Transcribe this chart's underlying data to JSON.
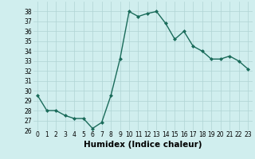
{
  "x": [
    0,
    1,
    2,
    3,
    4,
    5,
    6,
    7,
    8,
    9,
    10,
    11,
    12,
    13,
    14,
    15,
    16,
    17,
    18,
    19,
    20,
    21,
    22,
    23
  ],
  "y": [
    29.5,
    28.0,
    28.0,
    27.5,
    27.2,
    27.2,
    26.2,
    26.8,
    29.5,
    33.2,
    38.0,
    37.5,
    37.8,
    38.0,
    36.8,
    35.2,
    36.0,
    34.5,
    34.0,
    33.2,
    33.2,
    33.5,
    33.0,
    32.2
  ],
  "line_color": "#1a6b5a",
  "marker": "D",
  "marker_size": 2.0,
  "bg_color": "#d0eeee",
  "grid_color": "#b0d4d4",
  "xlabel": "Humidex (Indice chaleur)",
  "ylim": [
    26,
    39
  ],
  "xlim": [
    -0.5,
    23.5
  ],
  "yticks": [
    26,
    27,
    28,
    29,
    30,
    31,
    32,
    33,
    34,
    35,
    36,
    37,
    38
  ],
  "xticks": [
    0,
    1,
    2,
    3,
    4,
    5,
    6,
    7,
    8,
    9,
    10,
    11,
    12,
    13,
    14,
    15,
    16,
    17,
    18,
    19,
    20,
    21,
    22,
    23
  ],
  "tick_fontsize": 5.5,
  "xlabel_fontsize": 7.5,
  "line_width": 1.0
}
